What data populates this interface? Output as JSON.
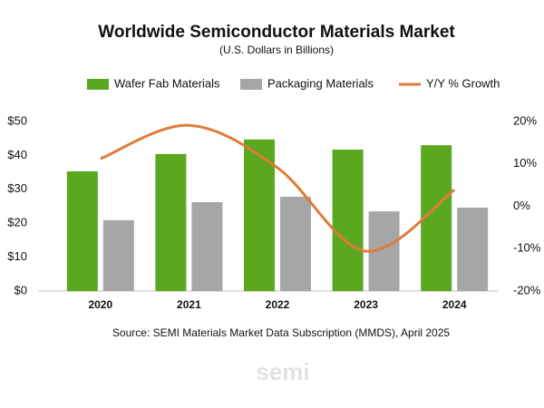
{
  "chart_data": {
    "type": "bar-line",
    "title": "Worldwide Semiconductor Materials Market",
    "subtitle": "(U.S. Dollars in Billions)",
    "source": "Source:  SEMI Materials Market Data Subscription (MMDS), April 2025",
    "watermark": "semi",
    "categories": [
      "2020",
      "2021",
      "2022",
      "2023",
      "2024"
    ],
    "series": [
      {
        "name": "Wafer Fab Materials",
        "color": "#5aa81e",
        "type": "bar",
        "values": [
          35.3,
          40.4,
          44.7,
          41.7,
          43.0
        ]
      },
      {
        "name": "Packaging  Materials",
        "color": "#a6a6a6",
        "type": "bar",
        "values": [
          20.9,
          26.2,
          27.8,
          23.5,
          24.6
        ]
      },
      {
        "name": "Y/Y % Growth",
        "color": "#e07b39",
        "type": "line",
        "axis": "y2",
        "values": [
          11.2,
          19.1,
          9.1,
          -10.6,
          3.9
        ]
      }
    ],
    "ylim": [
      0,
      50
    ],
    "yticks": [
      {
        "value": 0,
        "label": "$0"
      },
      {
        "value": 10,
        "label": "$10"
      },
      {
        "value": 20,
        "label": "$20"
      },
      {
        "value": 30,
        "label": "$30"
      },
      {
        "value": 40,
        "label": "$40"
      },
      {
        "value": 50,
        "label": "$50"
      }
    ],
    "y2lim": [
      -20,
      20
    ],
    "y2ticks": [
      {
        "value": -20,
        "label": "-20%"
      },
      {
        "value": -10,
        "label": "-10%"
      },
      {
        "value": 0,
        "label": "0%"
      },
      {
        "value": 10,
        "label": "10%"
      },
      {
        "value": 20,
        "label": "20%"
      }
    ],
    "grid": false,
    "legend": "top"
  }
}
